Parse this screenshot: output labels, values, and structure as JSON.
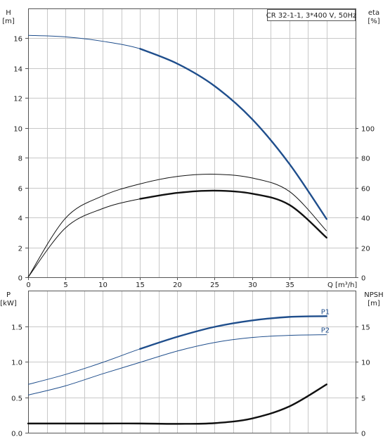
{
  "chart_data": [
    {
      "type": "line",
      "label_box": "CR 32-1-1, 3*400 V, 50Hz",
      "left_axis": {
        "label_line1": "H",
        "label_line2": "[m]",
        "ylim": [
          0,
          18
        ],
        "ticks": [
          0,
          2,
          4,
          6,
          8,
          10,
          12,
          14,
          16
        ]
      },
      "right_axis": {
        "label_line1": "eta",
        "label_line2": "[%]",
        "ylim": [
          0,
          180
        ],
        "ticks": [
          0,
          20,
          40,
          60,
          80,
          100
        ]
      },
      "x_axis": {
        "label": "Q [m³/h]",
        "xlim": [
          0,
          42
        ],
        "ticks": [
          0,
          5,
          10,
          15,
          20,
          25,
          30,
          35
        ],
        "grid_step": 2.5
      },
      "grid": true,
      "series": [
        {
          "axis": "left",
          "color": "#1f4e8c",
          "bold_from_x": 15,
          "x": [
            0,
            5,
            10,
            15,
            20,
            25,
            30,
            35,
            40
          ],
          "y": [
            16.2,
            16.1,
            15.8,
            15.3,
            14.3,
            12.8,
            10.6,
            7.6,
            3.9
          ]
        },
        {
          "axis": "right",
          "color": "#111111",
          "bold_from_x": null,
          "x": [
            0,
            5,
            10,
            15,
            20,
            25,
            30,
            35,
            40
          ],
          "y": [
            0,
            39.5,
            54.5,
            62.5,
            67.5,
            69,
            66.5,
            57.5,
            31
          ]
        },
        {
          "axis": "right",
          "color": "#111111",
          "bold_from_x": 15,
          "x": [
            0,
            5,
            10,
            15,
            20,
            25,
            30,
            35,
            40
          ],
          "y": [
            0,
            33,
            46,
            52.5,
            56.5,
            58,
            56,
            48.5,
            26.5
          ]
        }
      ]
    },
    {
      "type": "line",
      "left_axis": {
        "label_line1": "P",
        "label_line2": "[kW]",
        "ylim": [
          0,
          2.0
        ],
        "ticks": [
          "0.0",
          "0.5",
          "1.0",
          "1.5"
        ],
        "tick_values": [
          0,
          0.5,
          1.0,
          1.5
        ]
      },
      "right_axis": {
        "label_line1": "NPSH",
        "label_line2": "[m]",
        "ylim": [
          0,
          20
        ],
        "ticks": [
          "0",
          "5",
          "10",
          "15"
        ],
        "tick_values": [
          0,
          5,
          10,
          15
        ]
      },
      "x_axis": {
        "xlim": [
          0,
          42
        ],
        "grid_step": 2.5
      },
      "grid": true,
      "series": [
        {
          "name": "P1",
          "axis": "left",
          "color": "#1f4e8c",
          "bold_from_x": 15,
          "x": [
            0,
            5,
            10,
            15,
            20,
            25,
            30,
            35,
            40
          ],
          "y": [
            0.68,
            0.82,
            0.99,
            1.18,
            1.35,
            1.49,
            1.58,
            1.63,
            1.64
          ]
        },
        {
          "name": "P2",
          "axis": "left",
          "color": "#1f4e8c",
          "bold_from_x": null,
          "x": [
            0,
            5,
            10,
            15,
            20,
            25,
            30,
            35,
            40
          ],
          "y": [
            0.53,
            0.66,
            0.83,
            0.99,
            1.15,
            1.27,
            1.34,
            1.37,
            1.38
          ]
        },
        {
          "axis": "right",
          "color": "#111111",
          "bold_from_x": 0,
          "x": [
            0,
            5,
            10,
            15,
            20,
            25,
            30,
            35,
            40
          ],
          "y": [
            1.3,
            1.3,
            1.3,
            1.3,
            1.25,
            1.35,
            2.0,
            3.7,
            6.8
          ]
        }
      ]
    }
  ]
}
